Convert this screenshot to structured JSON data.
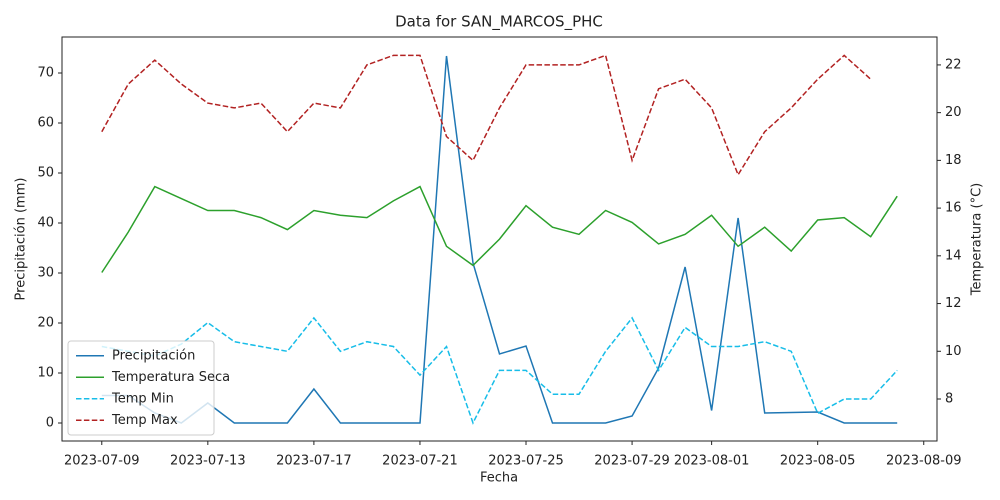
{
  "chart_data": {
    "type": "line",
    "title": "Data for SAN_MARCOS_PHC",
    "x_label": "Fecha",
    "y_label": "Precipitación (mm)",
    "y2_label": "Temperatura (°C)",
    "y_color": "#1f77b4",
    "y2_color": "#d62728",
    "legend": "lower left",
    "x": [
      "2023-07-09",
      "2023-07-10",
      "2023-07-11",
      "2023-07-12",
      "2023-07-13",
      "2023-07-14",
      "2023-07-15",
      "2023-07-16",
      "2023-07-17",
      "2023-07-18",
      "2023-07-19",
      "2023-07-20",
      "2023-07-21",
      "2023-07-22",
      "2023-07-23",
      "2023-07-24",
      "2023-07-25",
      "2023-07-26",
      "2023-07-27",
      "2023-07-28",
      "2023-07-29",
      "2023-07-30",
      "2023-07-31",
      "2023-08-01",
      "2023-08-02",
      "2023-08-03",
      "2023-08-04",
      "2023-08-05",
      "2023-08-06",
      "2023-08-07",
      "2023-08-08"
    ],
    "xlim": [
      "2023-07-07T12:00",
      "2023-08-09T12:00"
    ],
    "xticks": [
      "2023-07-09",
      "2023-07-13",
      "2023-07-17",
      "2023-07-21",
      "2023-07-25",
      "2023-07-29",
      "2023-08-01",
      "2023-08-05",
      "2023-08-09"
    ],
    "ylim": [
      -3.6,
      77.2
    ],
    "yticks": [
      0,
      10,
      20,
      30,
      40,
      50,
      60,
      70
    ],
    "y2lim": [
      6.24,
      23.17
    ],
    "y2ticks": [
      8,
      10,
      12,
      14,
      16,
      18,
      20,
      22
    ],
    "series": [
      {
        "name": "Precipitación",
        "color": "#1f77b4",
        "dash": false,
        "values": [
          5.5,
          5.5,
          2,
          0,
          4,
          0,
          0,
          0,
          6.8,
          0,
          0,
          0,
          0,
          73.4,
          32,
          13.8,
          15.4,
          0,
          0,
          0,
          1.4,
          11,
          31.2,
          2.5,
          41,
          2,
          2.1,
          2.2,
          0,
          0,
          0
        ]
      },
      {
        "name": "Temperatura Seca",
        "color": "#2ca02c",
        "dash": false,
        "axis": "y2",
        "values": [
          13.3,
          15.0,
          16.9,
          16.4,
          15.9,
          15.9,
          15.6,
          15.1,
          15.9,
          15.7,
          15.6,
          16.3,
          16.9,
          14.4,
          13.6,
          14.7,
          16.1,
          15.2,
          14.9,
          15.9,
          15.4,
          14.5,
          14.9,
          15.7,
          14.4,
          15.2,
          14.2,
          15.5,
          15.6,
          14.8,
          16.5
        ]
      },
      {
        "name": "Temp Min",
        "color": "#17bde8",
        "dash": true,
        "axis": "y2",
        "values": [
          10.2,
          10.0,
          9.8,
          10.3,
          11.2,
          10.4,
          10.2,
          10.0,
          11.4,
          10.0,
          10.4,
          10.2,
          9.0,
          10.2,
          7.0,
          9.2,
          9.2,
          8.2,
          8.2,
          10.0,
          11.4,
          9.2,
          11.0,
          10.2,
          10.2,
          10.4,
          10.0,
          7.4,
          8.0,
          8.0,
          9.2
        ]
      },
      {
        "name": "Temp Max",
        "color": "#b22222",
        "dash": true,
        "axis": "y2",
        "values": [
          19.2,
          21.2,
          22.2,
          21.2,
          20.4,
          20.2,
          20.4,
          19.2,
          20.4,
          20.2,
          22.0,
          22.4,
          22.4,
          19.0,
          18.0,
          20.2,
          22.0,
          22.0,
          22.0,
          22.4,
          18.0,
          21.0,
          21.4,
          20.2,
          17.4,
          19.2,
          20.2,
          21.4,
          22.4,
          21.4,
          null
        ]
      }
    ]
  }
}
